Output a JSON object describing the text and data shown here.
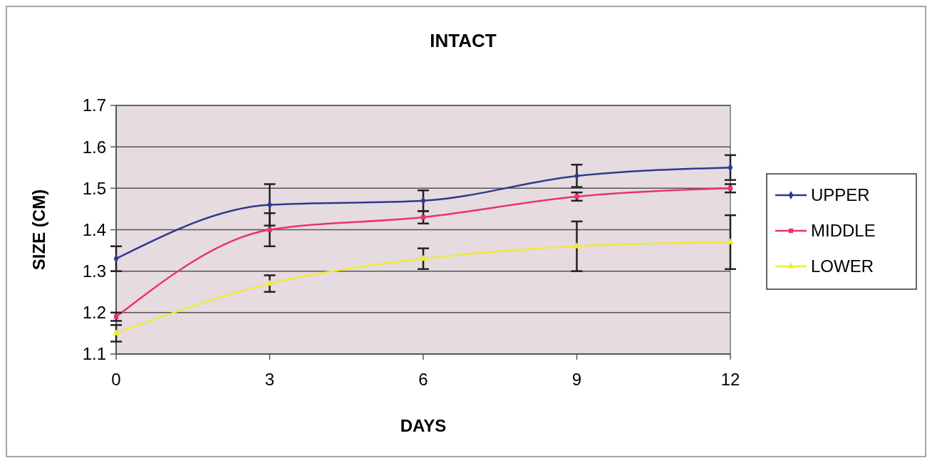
{
  "chart_data": {
    "type": "line",
    "title": "INTACT",
    "xlabel": "DAYS",
    "ylabel": "SIZE (CM)",
    "x": [
      0,
      3,
      6,
      9,
      12
    ],
    "xlim": [
      0,
      12
    ],
    "xticks": [
      0,
      3,
      6,
      9,
      12
    ],
    "ylim": [
      1.1,
      1.7
    ],
    "yticks": [
      1.1,
      1.2,
      1.3,
      1.4,
      1.5,
      1.6,
      1.7
    ],
    "grid": "y",
    "legend": "right",
    "series": [
      {
        "name": "UPPER",
        "color": "#2e3a8c",
        "marker": "diamond",
        "values": [
          1.33,
          1.46,
          1.47,
          1.53,
          1.55
        ],
        "errors": [
          0.03,
          0.05,
          0.025,
          0.027,
          0.03
        ]
      },
      {
        "name": "MIDDLE",
        "color": "#e8336e",
        "marker": "square",
        "values": [
          1.19,
          1.4,
          1.43,
          1.48,
          1.5
        ],
        "errors": [
          0.01,
          0.04,
          0.015,
          0.01,
          0.01
        ]
      },
      {
        "name": "LOWER",
        "color": "#f0ea3a",
        "marker": "triangle",
        "values": [
          1.15,
          1.27,
          1.33,
          1.36,
          1.37
        ],
        "errors": [
          0.02,
          0.02,
          0.025,
          0.06,
          0.065
        ]
      }
    ]
  }
}
